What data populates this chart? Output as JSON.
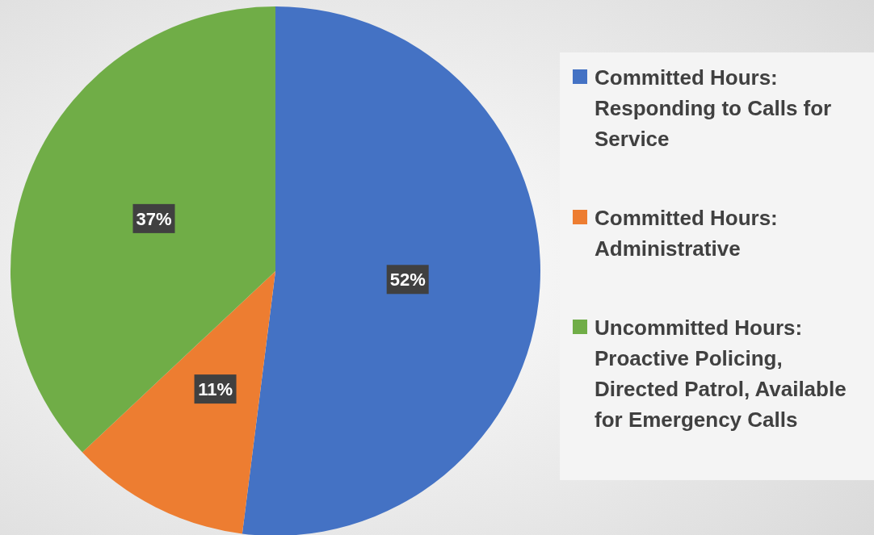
{
  "chart_data": {
    "type": "pie",
    "categories": [
      "Committed Hours: Responding to Calls for Service",
      "Committed Hours: Administrative",
      "Uncommitted Hours: Proactive Policing, Directed Patrol, Available for Emergency Calls"
    ],
    "values": [
      52,
      11,
      37
    ],
    "colors": [
      "#4472c4",
      "#ed7d31",
      "#70ad47"
    ],
    "value_labels": [
      "52%",
      "11%",
      "37%"
    ],
    "legend": "right"
  }
}
